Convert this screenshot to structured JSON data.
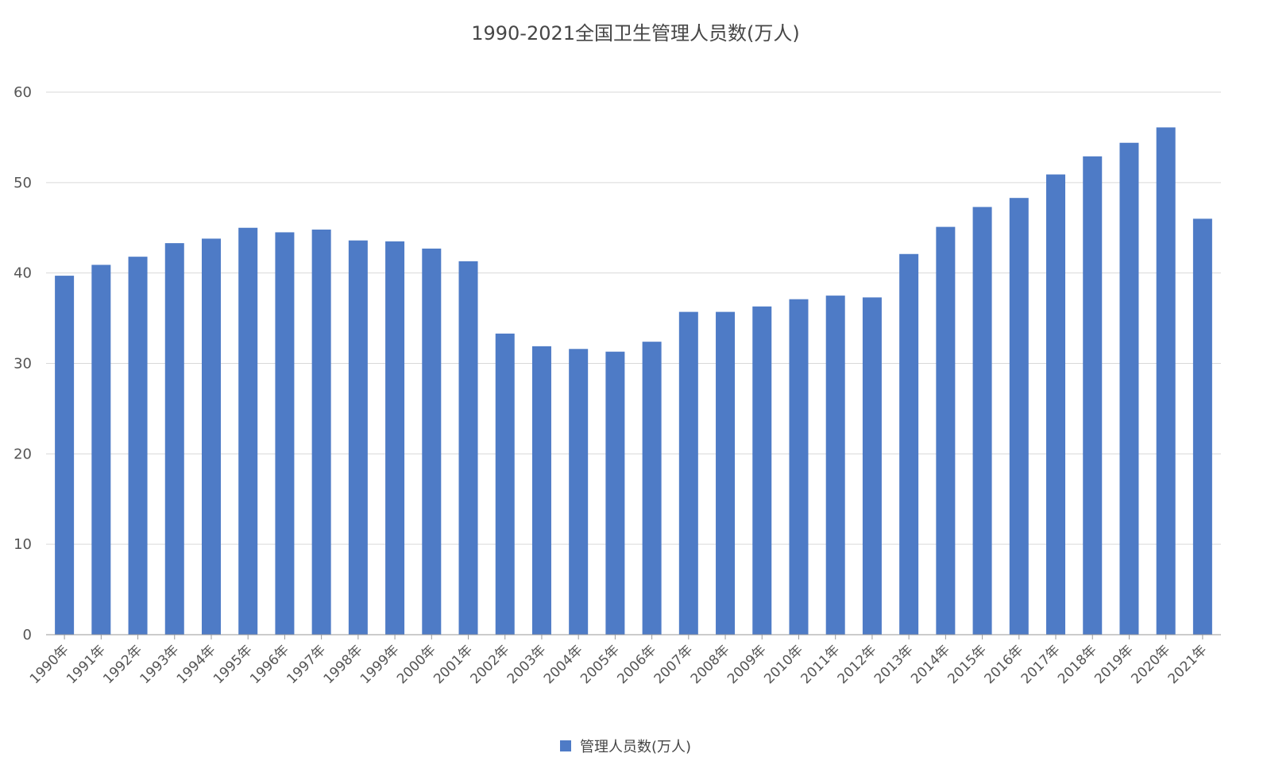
{
  "chart_data": {
    "type": "bar",
    "title": "1990-2021全国卫生管理人员数(万人)",
    "xlabel": "",
    "ylabel": "",
    "ylim": [
      0,
      60
    ],
    "yticks": [
      "0",
      "10",
      "20",
      "30",
      "40",
      "50",
      "60"
    ],
    "grid": true,
    "legend_position": "bottom-center",
    "categories": [
      "1990年",
      "1991年",
      "1992年",
      "1993年",
      "1994年",
      "1995年",
      "1996年",
      "1997年",
      "1998年",
      "1999年",
      "2000年",
      "2001年",
      "2002年",
      "2003年",
      "2004年",
      "2005年",
      "2006年",
      "2007年",
      "2008年",
      "2009年",
      "2010年",
      "2011年",
      "2012年",
      "2013年",
      "2014年",
      "2015年",
      "2016年",
      "2017年",
      "2018年",
      "2019年",
      "2020年",
      "2021年"
    ],
    "series": [
      {
        "name": "管理人员数(万人)",
        "color": "#4e7bc6",
        "values": [
          39.7,
          40.9,
          41.8,
          43.3,
          43.8,
          45.0,
          44.5,
          44.8,
          43.6,
          43.5,
          42.7,
          41.3,
          33.3,
          31.9,
          31.6,
          31.3,
          32.4,
          35.7,
          35.7,
          36.3,
          37.1,
          37.5,
          37.3,
          42.1,
          45.1,
          47.3,
          48.3,
          50.9,
          52.9,
          54.4,
          56.1,
          46.0
        ]
      }
    ]
  }
}
